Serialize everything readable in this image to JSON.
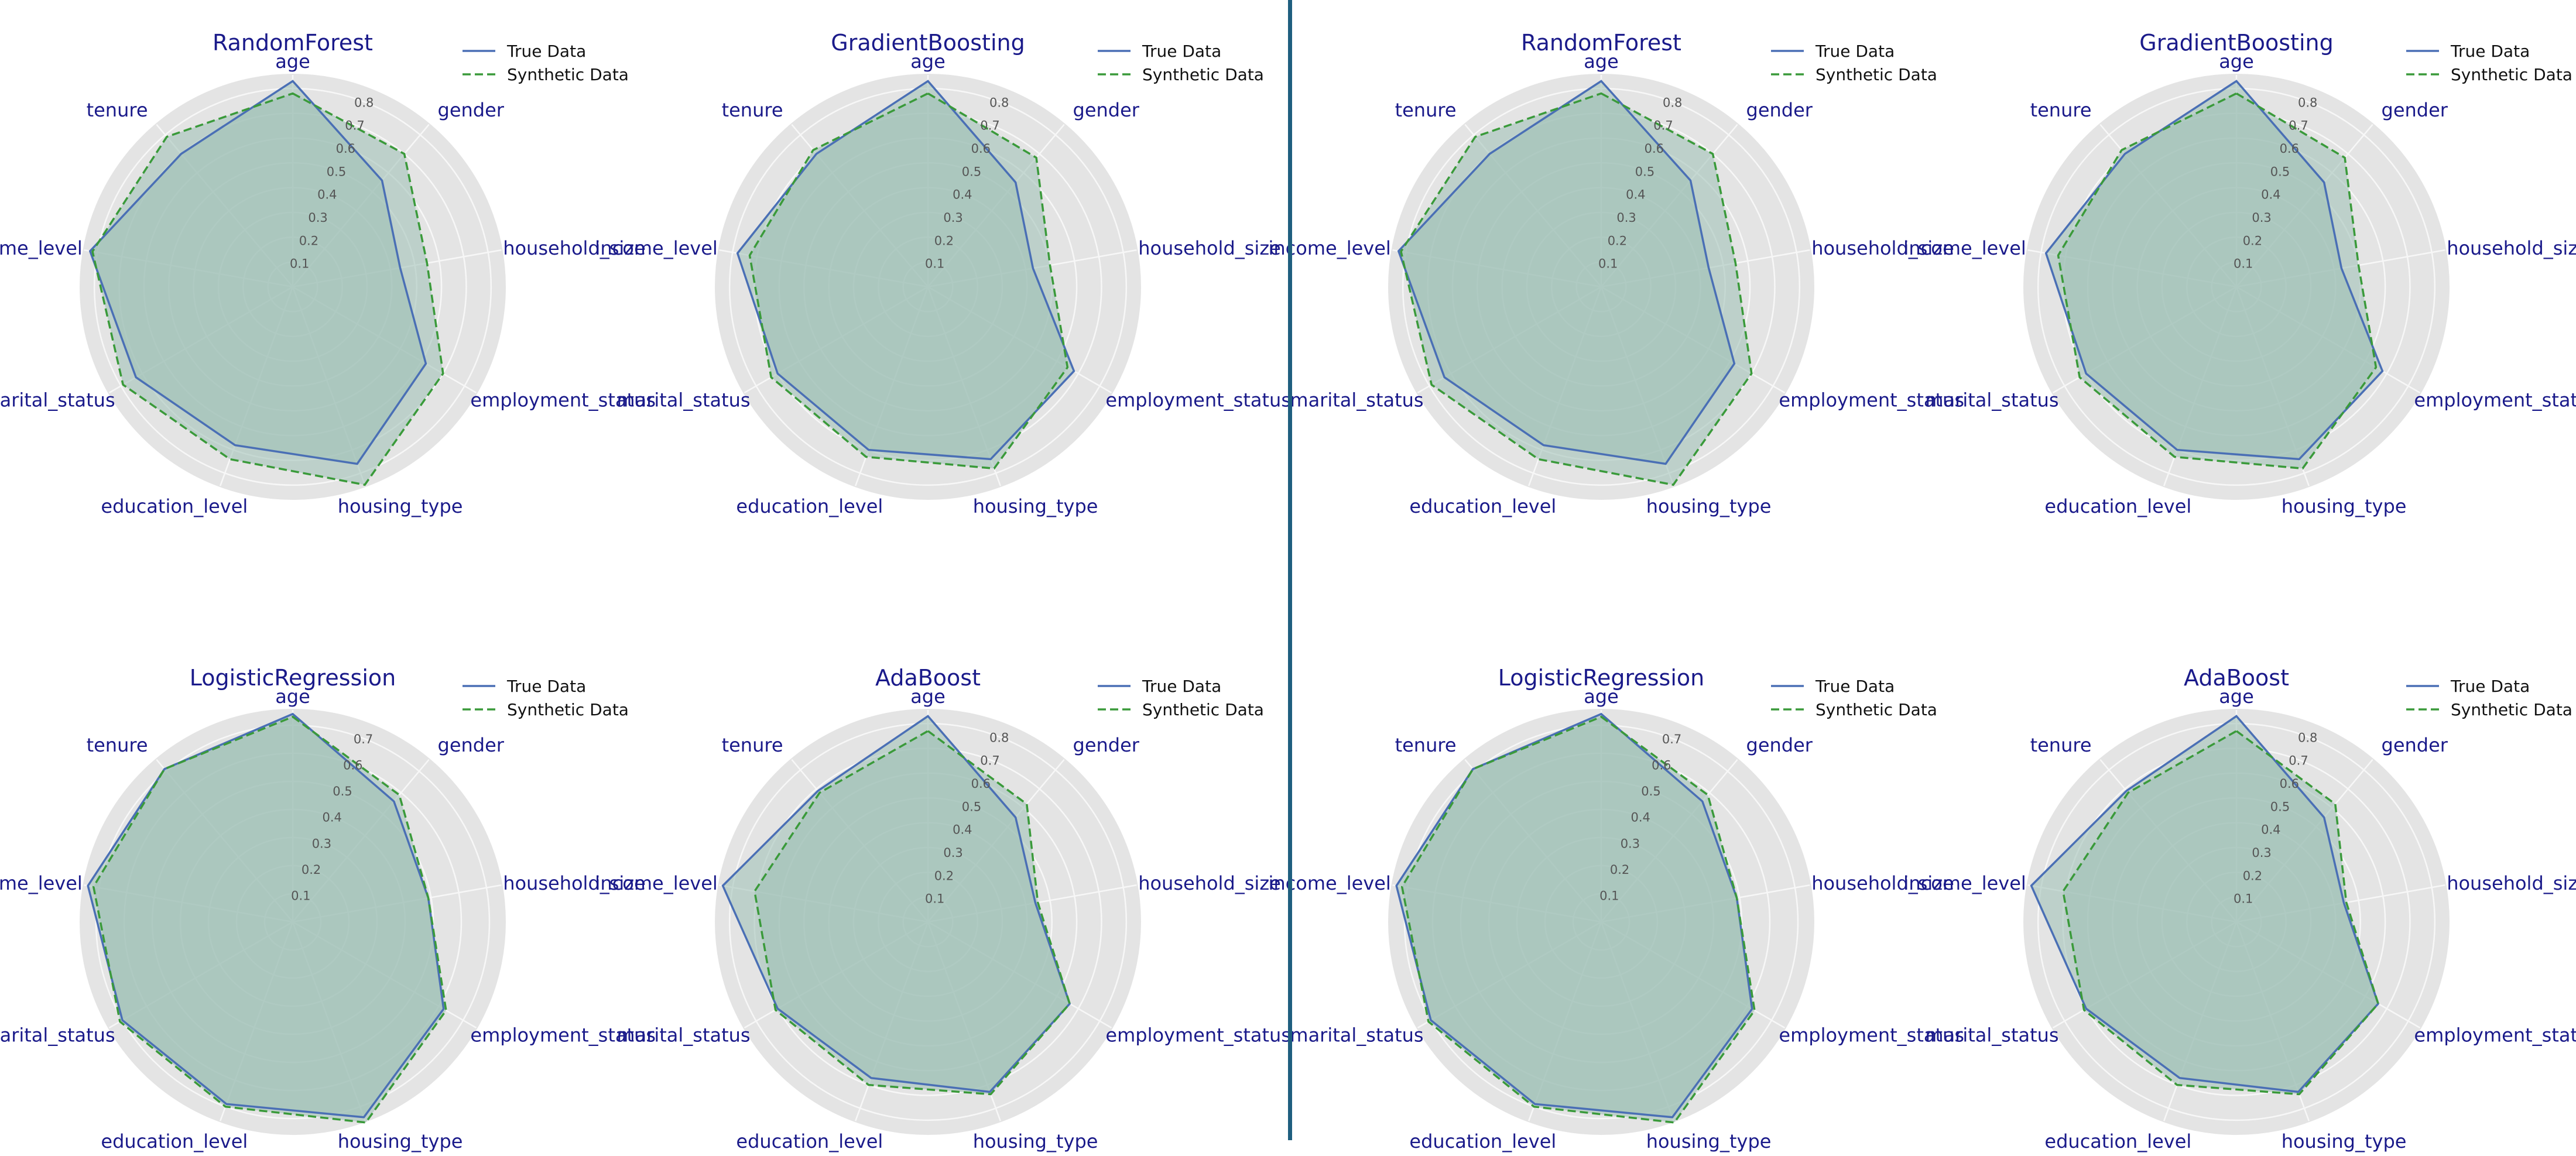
{
  "labels": {
    "axes": [
      "age",
      "gender",
      "household_size",
      "employment_status",
      "housing_type",
      "education_level",
      "marital_status",
      "income_level",
      "tenure"
    ],
    "legend": [
      "True Data",
      "Synthetic Data"
    ]
  },
  "colors": {
    "true_line": "#4a6fb5",
    "synthetic_line": "#3a9a3a",
    "fill": "#9cc0b4",
    "grid_bg": "#e4e4e4",
    "title": "#1a1a8a",
    "axis_label": "#1a1a8a",
    "divider": "#1f5f7f"
  },
  "chart_data": [
    {
      "type": "radar",
      "title": "RandomForest",
      "rticks": [
        0.1,
        0.2,
        0.3,
        0.4,
        0.5,
        0.6,
        0.7,
        0.8
      ],
      "rmax": 0.85,
      "legend": "top-right",
      "series": [
        {
          "name": "True Data",
          "values": [
            0.83,
            0.56,
            0.44,
            0.62,
            0.76,
            0.68,
            0.73,
            0.83,
            0.7
          ]
        },
        {
          "name": "Synthetic Data",
          "values": [
            0.78,
            0.7,
            0.55,
            0.7,
            0.85,
            0.74,
            0.79,
            0.82,
            0.79
          ]
        }
      ]
    },
    {
      "type": "radar",
      "title": "GradientBoosting",
      "rticks": [
        0.1,
        0.2,
        0.3,
        0.4,
        0.5,
        0.6,
        0.7,
        0.8
      ],
      "rmax": 0.85,
      "legend": "top-right",
      "series": [
        {
          "name": "True Data",
          "values": [
            0.83,
            0.55,
            0.43,
            0.68,
            0.74,
            0.7,
            0.7,
            0.78,
            0.7
          ]
        },
        {
          "name": "Synthetic Data",
          "values": [
            0.78,
            0.68,
            0.5,
            0.65,
            0.78,
            0.73,
            0.73,
            0.73,
            0.72
          ]
        }
      ]
    },
    {
      "type": "radar",
      "title": "RandomForest",
      "rticks": [
        0.1,
        0.2,
        0.3,
        0.4,
        0.5,
        0.6,
        0.7,
        0.8
      ],
      "rmax": 0.85,
      "legend": "top-right",
      "series": [
        {
          "name": "True Data",
          "values": [
            0.83,
            0.56,
            0.44,
            0.62,
            0.76,
            0.68,
            0.73,
            0.83,
            0.7
          ]
        },
        {
          "name": "Synthetic Data",
          "values": [
            0.78,
            0.7,
            0.55,
            0.7,
            0.85,
            0.74,
            0.79,
            0.82,
            0.79
          ]
        }
      ]
    },
    {
      "type": "radar",
      "title": "GradientBoosting",
      "rticks": [
        0.1,
        0.2,
        0.3,
        0.4,
        0.5,
        0.6,
        0.7,
        0.8
      ],
      "rmax": 0.85,
      "legend": "top-right",
      "series": [
        {
          "name": "True Data",
          "values": [
            0.83,
            0.55,
            0.43,
            0.68,
            0.74,
            0.7,
            0.7,
            0.78,
            0.7
          ]
        },
        {
          "name": "Synthetic Data",
          "values": [
            0.78,
            0.68,
            0.5,
            0.65,
            0.78,
            0.73,
            0.73,
            0.73,
            0.72
          ]
        }
      ]
    },
    {
      "type": "radar",
      "title": "LogisticRegression",
      "rticks": [
        0.1,
        0.2,
        0.3,
        0.4,
        0.5,
        0.6,
        0.7
      ],
      "rmax": 0.75,
      "legend": "top-right",
      "series": [
        {
          "name": "True Data",
          "values": [
            0.74,
            0.56,
            0.49,
            0.62,
            0.74,
            0.69,
            0.7,
            0.74,
            0.71
          ]
        },
        {
          "name": "Synthetic Data",
          "values": [
            0.73,
            0.59,
            0.49,
            0.63,
            0.76,
            0.7,
            0.71,
            0.72,
            0.71
          ]
        }
      ]
    },
    {
      "type": "radar",
      "title": "AdaBoost",
      "rticks": [
        0.1,
        0.2,
        0.3,
        0.4,
        0.5,
        0.6,
        0.7,
        0.8
      ],
      "rmax": 0.85,
      "legend": "top-right",
      "series": [
        {
          "name": "True Data",
          "values": [
            0.83,
            0.55,
            0.44,
            0.66,
            0.73,
            0.67,
            0.7,
            0.84,
            0.69
          ]
        },
        {
          "name": "Synthetic Data",
          "values": [
            0.77,
            0.62,
            0.45,
            0.66,
            0.74,
            0.7,
            0.71,
            0.71,
            0.68
          ]
        }
      ]
    },
    {
      "type": "radar",
      "title": "LogisticRegression",
      "rticks": [
        0.1,
        0.2,
        0.3,
        0.4,
        0.5,
        0.6,
        0.7
      ],
      "rmax": 0.75,
      "legend": "top-right",
      "series": [
        {
          "name": "True Data",
          "values": [
            0.74,
            0.56,
            0.49,
            0.62,
            0.74,
            0.69,
            0.7,
            0.74,
            0.71
          ]
        },
        {
          "name": "Synthetic Data",
          "values": [
            0.73,
            0.59,
            0.49,
            0.63,
            0.76,
            0.7,
            0.71,
            0.72,
            0.71
          ]
        }
      ]
    },
    {
      "type": "radar",
      "title": "AdaBoost",
      "rticks": [
        0.1,
        0.2,
        0.3,
        0.4,
        0.5,
        0.6,
        0.7,
        0.8
      ],
      "rmax": 0.85,
      "legend": "top-right",
      "series": [
        {
          "name": "True Data",
          "values": [
            0.83,
            0.55,
            0.44,
            0.66,
            0.73,
            0.67,
            0.7,
            0.84,
            0.69
          ]
        },
        {
          "name": "Synthetic Data",
          "values": [
            0.77,
            0.62,
            0.45,
            0.66,
            0.74,
            0.7,
            0.71,
            0.71,
            0.68
          ]
        }
      ]
    }
  ]
}
